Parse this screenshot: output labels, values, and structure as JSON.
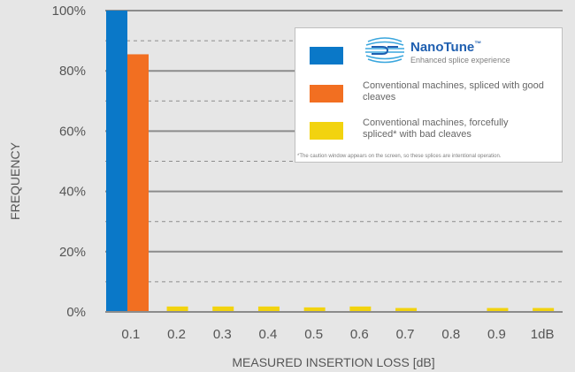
{
  "chart_data": {
    "type": "bar",
    "categories": [
      "0.1",
      "0.2",
      "0.3",
      "0.4",
      "0.5",
      "0.6",
      "0.7",
      "0.8",
      "0.9",
      "1dB"
    ],
    "series": [
      {
        "name": "NanoTune",
        "color": "#0a78c8",
        "values": [
          100,
          0,
          0,
          0,
          0,
          0,
          0,
          0,
          0,
          0
        ]
      },
      {
        "name": "Conventional machines, spliced with good cleaves",
        "color": "#f26f21",
        "values": [
          85.5,
          0,
          0,
          0,
          0,
          0,
          0,
          0,
          0,
          0
        ]
      },
      {
        "name": "Conventional machines, forcefully spliced* with bad cleaves",
        "color": "#f2d30f",
        "values": [
          3,
          1.8,
          1.8,
          1.8,
          1.5,
          1.8,
          1.3,
          0,
          1.3,
          1.3
        ]
      }
    ],
    "xlabel": "MEASURED  INSERTION  LOSS  [dB]",
    "ylabel": "FREQUENCY",
    "y_ticks": [
      "0%",
      "20%",
      "40%",
      "60%",
      "80%",
      "100%"
    ],
    "ylim": [
      0,
      100
    ],
    "grid": "solid at major ticks, dashed at 10% midpoints",
    "legend_placement": "top-right"
  },
  "legend": {
    "brand_name": "NanoTune",
    "brand_tm": "™",
    "brand_subtitle": "Enhanced splice experience",
    "series_labels": [
      "",
      "Conventional machines, spliced with good cleaves",
      "Conventional machines, forcefully spliced* with bad cleaves"
    ],
    "footnote": "*The caution window appears on the screen, so these splices are intentional operation."
  }
}
